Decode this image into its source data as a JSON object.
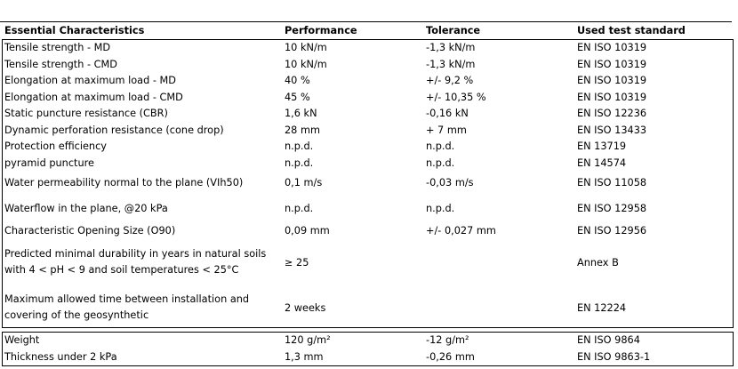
{
  "header": {
    "characteristic": "Essential Characteristics",
    "performance": "Performance",
    "tolerance": "Tolerance",
    "standard": "Used test standard"
  },
  "rows": [
    {
      "characteristic": "Tensile strength - MD",
      "performance": "10 kN/m",
      "tolerance": "-1,3 kN/m",
      "standard": "EN ISO 10319"
    },
    {
      "characteristic": "Tensile strength - CMD",
      "performance": "10 kN/m",
      "tolerance": "-1,3 kN/m",
      "standard": "EN ISO 10319"
    },
    {
      "characteristic": "Elongation at maximum load - MD",
      "performance": "40 %",
      "tolerance": "+/- 9,2 %",
      "standard": "EN ISO 10319"
    },
    {
      "characteristic": "Elongation at maximum load - CMD",
      "performance": "45 %",
      "tolerance": "+/- 10,35 %",
      "standard": "EN ISO 10319"
    },
    {
      "characteristic": "Static  puncture resistance (CBR)",
      "performance": "1,6 kN",
      "tolerance": "-0,16 kN",
      "standard": "EN ISO 12236"
    },
    {
      "characteristic": "Dynamic perforation resistance (cone drop)",
      "performance": "28 mm",
      "tolerance": "+ 7 mm",
      "standard": "EN ISO 13433"
    },
    {
      "characteristic": "Protection efficiency",
      "performance": "n.p.d.",
      "tolerance": "n.p.d.",
      "standard": "EN 13719"
    },
    {
      "characteristic": "pyramid puncture",
      "performance": "n.p.d.",
      "tolerance": "n.p.d.",
      "standard": "EN 14574"
    },
    {
      "characteristic": "Water permeability normal to the plane (VIh50)",
      "performance": "0,1 m/s",
      "tolerance": "-0,03 m/s",
      "standard": "EN ISO 11058"
    },
    {
      "characteristic": "Waterflow in the plane, @20 kPa",
      "performance": "n.p.d.",
      "tolerance": "n.p.d.",
      "standard": "EN ISO 12958"
    },
    {
      "characteristic": "Characteristic Opening Size (O90)",
      "performance": "0,09 mm",
      "tolerance": "+/- 0,027 mm",
      "standard": "EN ISO 12956"
    },
    {
      "characteristic": "Predicted minimal durability in years in natural soils with 4 < pH < 9 and soil temperatures < 25°C",
      "performance": "≥ 25",
      "tolerance": "",
      "standard": "Annex B"
    },
    {
      "characteristic": "Maximum allowed time between installation and covering of the geosynthetic",
      "performance": "2 weeks",
      "tolerance": "",
      "standard": "EN 12224"
    }
  ],
  "bottom_rows": [
    {
      "characteristic": "Weight",
      "performance": "120 g/m²",
      "tolerance": "-12 g/m²",
      "standard": "EN ISO 9864"
    },
    {
      "characteristic": "Thickness under 2 kPa",
      "performance": "1,3 mm",
      "tolerance": "-0,26 mm",
      "standard": "EN ISO 9863-1"
    }
  ]
}
